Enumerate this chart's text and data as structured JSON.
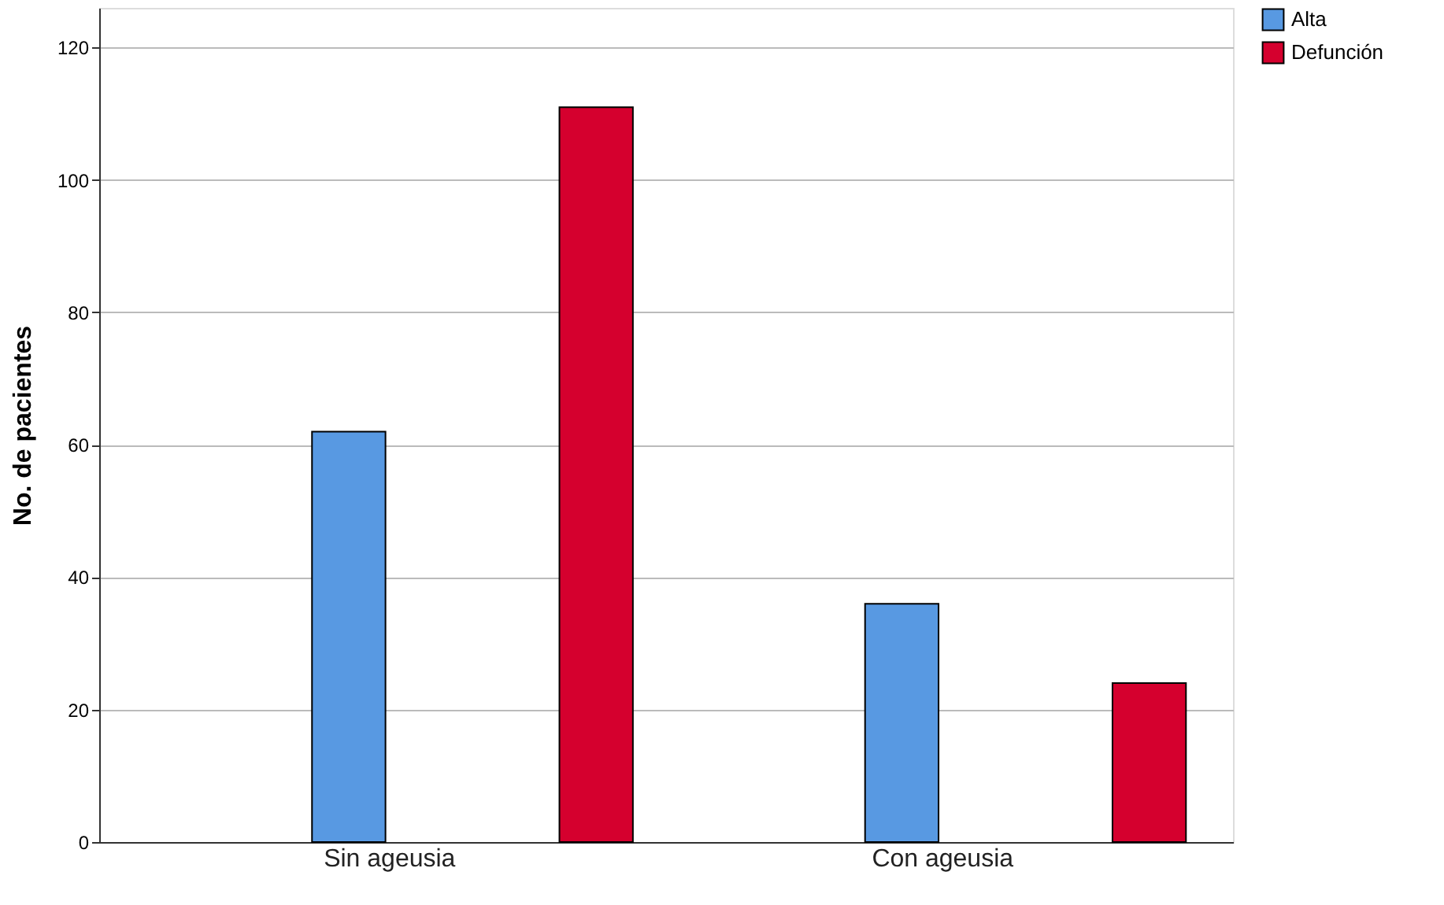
{
  "chart_data": {
    "type": "bar",
    "ylabel": "No. de pacientes",
    "categories": [
      "Sin ageusia",
      "Con ageusia"
    ],
    "series": [
      {
        "name": "Alta",
        "color": "#5899e2",
        "values": [
          62,
          36
        ]
      },
      {
        "name": "Defunción",
        "color": "#d5002e",
        "values": [
          111,
          24
        ]
      }
    ],
    "ylim": [
      0,
      126
    ],
    "yticks": [
      0,
      20,
      40,
      60,
      80,
      100,
      120
    ],
    "grid": "y",
    "legend": "top right"
  }
}
